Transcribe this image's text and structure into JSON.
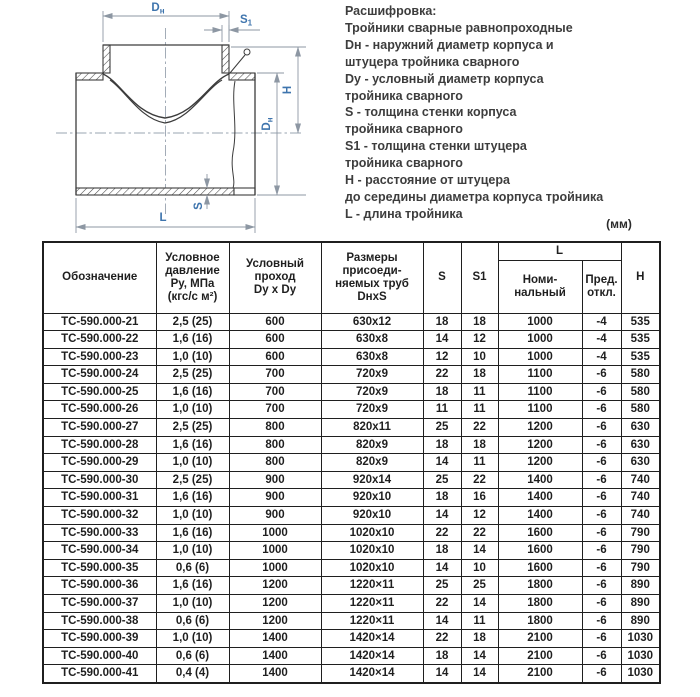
{
  "colors": {
    "accent_blue": "#3e74ad",
    "dimension_line_gray": "#8d97a3",
    "outline_dark": "#3c3c3c",
    "table_ink": "#1f1f1f"
  },
  "legend": {
    "title": "Расшифровка:",
    "lines": [
      "Тройники сварные равнопроходные",
      "Dн - наружний диаметр корпуса и",
      "штуцера тройника сварного",
      "Dy - условный диаметр корпуса",
      "тройника сварного",
      "S - толщина стенки корпуса",
      "тройника сварного",
      "S1 - толщина стенки штуцера",
      "тройника сварного",
      "H - расстояние от штуцера",
      "до середины диаметра корпуса тройника",
      "L - длина тройника"
    ]
  },
  "units_note": "(мм)",
  "drawing": {
    "labels": {
      "d_main": "D",
      "d_sub": "н",
      "s1_main": "S",
      "s1_sub": "1",
      "h": "H",
      "s": "S",
      "l": "L"
    }
  },
  "table": {
    "header": {
      "designation": "Обозначение",
      "pressure": "Условное\nдавление\nРу, МПа\n(кгс/с м²)",
      "bore": "Условный\nпроход\nDy x Dy",
      "pipe_sizes": "Размеры\nприсоеди-\nняемых труб\nDнxS",
      "s": "S",
      "s1": "S1",
      "l": "L",
      "nominal": "Номи-\nнальный",
      "deviation": "Пред.\nоткл.",
      "h": "H"
    },
    "rows": [
      [
        "ТС-590.000-21",
        "2,5 (25)",
        "600",
        "630x12",
        "18",
        "18",
        "1000",
        "-4",
        "535"
      ],
      [
        "ТС-590.000-22",
        "1,6 (16)",
        "600",
        "630x8",
        "14",
        "12",
        "1000",
        "-4",
        "535"
      ],
      [
        "ТС-590.000-23",
        "1,0 (10)",
        "600",
        "630x8",
        "12",
        "10",
        "1000",
        "-4",
        "535"
      ],
      [
        "ТС-590.000-24",
        "2,5 (25)",
        "700",
        "720x9",
        "22",
        "18",
        "1100",
        "-6",
        "580"
      ],
      [
        "ТС-590.000-25",
        "1,6 (16)",
        "700",
        "720x9",
        "18",
        "11",
        "1100",
        "-6",
        "580"
      ],
      [
        "ТС-590.000-26",
        "1,0 (10)",
        "700",
        "720x9",
        "11",
        "11",
        "1100",
        "-6",
        "580"
      ],
      [
        "ТС-590.000-27",
        "2,5 (25)",
        "800",
        "820x11",
        "25",
        "22",
        "1200",
        "-6",
        "630"
      ],
      [
        "ТС-590.000-28",
        "1,6 (16)",
        "800",
        "820x9",
        "18",
        "18",
        "1200",
        "-6",
        "630"
      ],
      [
        "ТС-590.000-29",
        "1,0 (10)",
        "800",
        "820x9",
        "14",
        "11",
        "1200",
        "-6",
        "630"
      ],
      [
        "ТС-590.000-30",
        "2,5 (25)",
        "900",
        "920x14",
        "25",
        "22",
        "1400",
        "-6",
        "740"
      ],
      [
        "ТС-590.000-31",
        "1,6 (16)",
        "900",
        "920x10",
        "18",
        "16",
        "1400",
        "-6",
        "740"
      ],
      [
        "ТС-590.000-32",
        "1,0 (10)",
        "900",
        "920x10",
        "14",
        "12",
        "1400",
        "-6",
        "740"
      ],
      [
        "ТС-590.000-33",
        "1,6 (16)",
        "1000",
        "1020x10",
        "22",
        "22",
        "1600",
        "-6",
        "790"
      ],
      [
        "ТС-590.000-34",
        "1,0 (10)",
        "1000",
        "1020x10",
        "18",
        "14",
        "1600",
        "-6",
        "790"
      ],
      [
        "ТС-590.000-35",
        "0,6 (6)",
        "1000",
        "1020x10",
        "14",
        "10",
        "1600",
        "-6",
        "790"
      ],
      [
        "ТС-590.000-36",
        "1,6 (16)",
        "1200",
        "1220×11",
        "25",
        "25",
        "1800",
        "-6",
        "890"
      ],
      [
        "ТС-590.000-37",
        "1,0 (10)",
        "1200",
        "1220×11",
        "22",
        "14",
        "1800",
        "-6",
        "890"
      ],
      [
        "ТС-590.000-38",
        "0,6 (6)",
        "1200",
        "1220×11",
        "14",
        "11",
        "1800",
        "-6",
        "890"
      ],
      [
        "ТС-590.000-39",
        "1,0 (10)",
        "1400",
        "1420×14",
        "22",
        "18",
        "2100",
        "-6",
        "1030"
      ],
      [
        "ТС-590.000-40",
        "0,6 (6)",
        "1400",
        "1420×14",
        "18",
        "14",
        "2100",
        "-6",
        "1030"
      ],
      [
        "ТС-590.000-41",
        "0,4 (4)",
        "1400",
        "1420×14",
        "14",
        "14",
        "2100",
        "-6",
        "1030"
      ]
    ]
  }
}
